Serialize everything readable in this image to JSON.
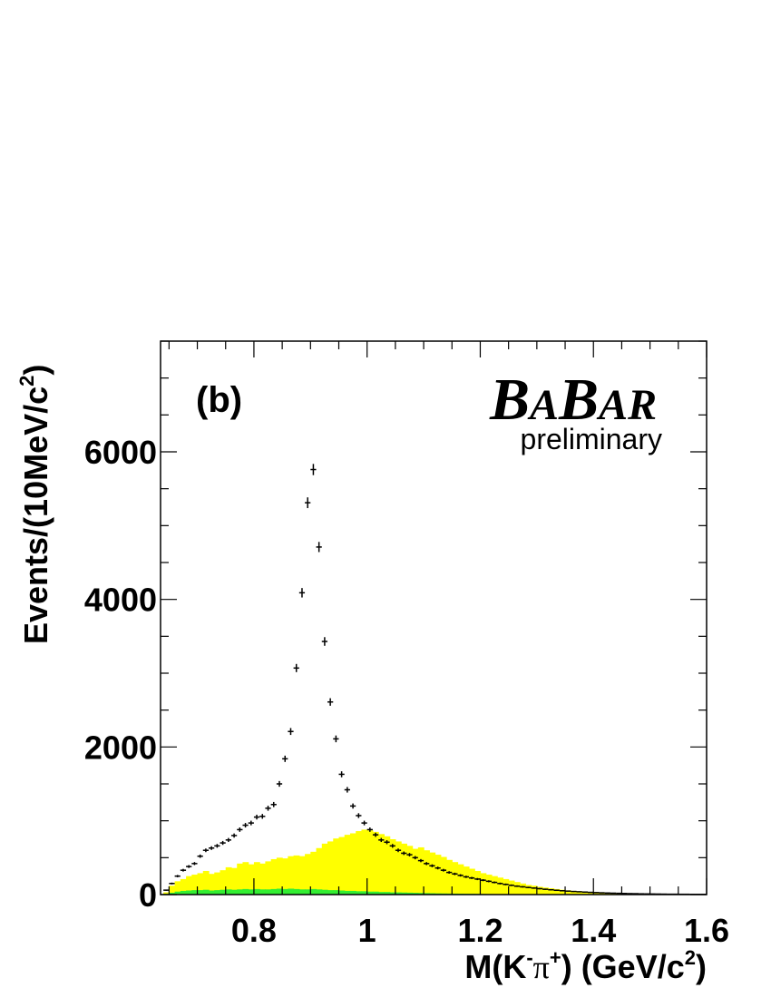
{
  "chart_data": {
    "type": "scatter",
    "panel_label": "(b)",
    "experiment": {
      "logo_parts": [
        "B",
        "A",
        "B",
        "AR"
      ],
      "status": "preliminary"
    },
    "xlabel": {
      "prefix": "M(K",
      "sup1": "-",
      "pi": "π",
      "sup2": "+",
      "suffix": ") (GeV/c",
      "sup3": "2",
      "close": ")"
    },
    "ylabel": {
      "main": "Events/(10MeV/c",
      "sup": "2",
      "close": ")"
    },
    "xlim": [
      0.635,
      1.6
    ],
    "ylim": [
      0,
      7500
    ],
    "x_ticks": [
      {
        "value": 0.8,
        "label": "0.8"
      },
      {
        "value": 1.0,
        "label": "1"
      },
      {
        "value": 1.2,
        "label": "1.2"
      },
      {
        "value": 1.4,
        "label": "1.4"
      },
      {
        "value": 1.6,
        "label": "1.6"
      }
    ],
    "y_ticks": [
      {
        "value": 0,
        "label": "0"
      },
      {
        "value": 2000,
        "label": "2000"
      },
      {
        "value": 4000,
        "label": "4000"
      },
      {
        "value": 6000,
        "label": "6000"
      }
    ],
    "colors": {
      "data": "#000000",
      "background_yellow": "#ffff00",
      "background_green": "#33ee33"
    },
    "series": [
      {
        "role": "data",
        "x": [
          0.645,
          0.655,
          0.665,
          0.675,
          0.685,
          0.695,
          0.705,
          0.715,
          0.725,
          0.735,
          0.745,
          0.755,
          0.765,
          0.775,
          0.785,
          0.795,
          0.805,
          0.815,
          0.825,
          0.835,
          0.845,
          0.855,
          0.865,
          0.875,
          0.885,
          0.895,
          0.905,
          0.915,
          0.925,
          0.935,
          0.945,
          0.955,
          0.965,
          0.975,
          0.985,
          0.995,
          1.005,
          1.015,
          1.025,
          1.035,
          1.045,
          1.055,
          1.065,
          1.075,
          1.085,
          1.095,
          1.105,
          1.115,
          1.125,
          1.135,
          1.145,
          1.155,
          1.165,
          1.175,
          1.185,
          1.195,
          1.205,
          1.215,
          1.225,
          1.235,
          1.245,
          1.255,
          1.265,
          1.275,
          1.285,
          1.295,
          1.305,
          1.315,
          1.325,
          1.335,
          1.345,
          1.355,
          1.365,
          1.375,
          1.385,
          1.395,
          1.405,
          1.415,
          1.425,
          1.435,
          1.445,
          1.455,
          1.465,
          1.475,
          1.485,
          1.495,
          1.505,
          1.515,
          1.525,
          1.535,
          1.545,
          1.555,
          1.565,
          1.575,
          1.585,
          1.595
        ],
        "y": [
          60,
          150,
          250,
          330,
          380,
          420,
          520,
          600,
          630,
          660,
          700,
          740,
          800,
          880,
          940,
          970,
          1050,
          1060,
          1170,
          1220,
          1500,
          1840,
          2210,
          3070,
          4090,
          5310,
          5760,
          4710,
          3430,
          2610,
          2110,
          1630,
          1420,
          1200,
          1070,
          970,
          880,
          810,
          740,
          710,
          660,
          600,
          560,
          540,
          500,
          460,
          420,
          390,
          360,
          330,
          300,
          280,
          260,
          240,
          225,
          210,
          195,
          180,
          165,
          150,
          138,
          126,
          114,
          105,
          96,
          88,
          80,
          72,
          65,
          58,
          52,
          47,
          42,
          38,
          34,
          30,
          27,
          24,
          21,
          19,
          17,
          15,
          13,
          12,
          10,
          9,
          8,
          7,
          6,
          5,
          5,
          4,
          4,
          3,
          3,
          3
        ]
      },
      {
        "role": "background",
        "name": "",
        "y": [
          30,
          120,
          180,
          210,
          250,
          270,
          290,
          320,
          280,
          300,
          330,
          370,
          360,
          420,
          440,
          410,
          440,
          420,
          450,
          480,
          500,
          490,
          520,
          530,
          520,
          550,
          580,
          630,
          690,
          720,
          760,
          780,
          810,
          830,
          860,
          880,
          870,
          850,
          820,
          790,
          750,
          720,
          690,
          660,
          620,
          640,
          600,
          570,
          540,
          510,
          470,
          440,
          410,
          380,
          350,
          320,
          290,
          270,
          250,
          230,
          210,
          190,
          170,
          150,
          130,
          120,
          105,
          95,
          85,
          75,
          65,
          57,
          50,
          44,
          38,
          33,
          29,
          25,
          21,
          18,
          15,
          13,
          11,
          9,
          8,
          7,
          6,
          5,
          4,
          3,
          3,
          2,
          2,
          2,
          1,
          1
        ]
      },
      {
        "role": "background",
        "name": "",
        "y": [
          10,
          25,
          40,
          50,
          55,
          60,
          60,
          65,
          55,
          60,
          65,
          70,
          65,
          70,
          75,
          70,
          75,
          70,
          70,
          75,
          80,
          75,
          80,
          75,
          70,
          70,
          75,
          70,
          65,
          60,
          60,
          55,
          50,
          50,
          45,
          45,
          40,
          40,
          35,
          35,
          30,
          30,
          28,
          26,
          24,
          22,
          20,
          18,
          16,
          15,
          14,
          13,
          12,
          11,
          10,
          9,
          8,
          7,
          6,
          6,
          5,
          5,
          4,
          4,
          3,
          3,
          3,
          2,
          2,
          2,
          2,
          1,
          1,
          1,
          1,
          1,
          1,
          1,
          1,
          0,
          0,
          0,
          0,
          0,
          0,
          0,
          0,
          0,
          0,
          0,
          0,
          0,
          0,
          0,
          0,
          0
        ]
      }
    ]
  }
}
